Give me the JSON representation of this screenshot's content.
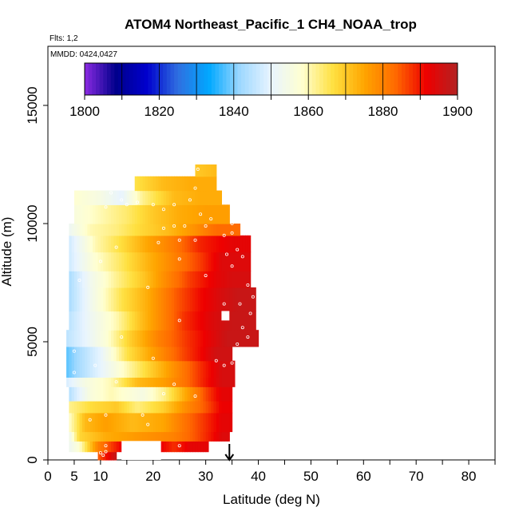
{
  "chart_data": {
    "type": "heatmap",
    "title": "ATOM4 Northeast_Pacific_1 CH4_NOAA_trop",
    "flights_label": "Flts: 1,2",
    "date_label": "MMDD: 0424,0427",
    "xlabel": "Latitude (deg N)",
    "ylabel": "Altitude (m)",
    "xlim": [
      0,
      85
    ],
    "ylim": [
      0,
      17500
    ],
    "xticks": [
      "0",
      "5",
      "10",
      "20",
      "30",
      "40",
      "50",
      "60",
      "70",
      "80"
    ],
    "yticks": [
      "0",
      "5000",
      "10000",
      "15000"
    ],
    "colorbar": {
      "min": 1800,
      "max": 1900,
      "tick_labels": [
        "1800",
        "1820",
        "1840",
        "1860",
        "1880",
        "1900"
      ],
      "colors": [
        "#8B2BE2",
        "#00008B",
        "#0000CD",
        "#2F6FE0",
        "#00A8FF",
        "#9ED8FF",
        "#E8F4FF",
        "#FFFFD0",
        "#FFE040",
        "#FFA500",
        "#FF6A00",
        "#EE0000",
        "#B22222"
      ],
      "position": "top"
    },
    "marker_latitude": 34.5,
    "profiles": [
      {
        "y0": 0,
        "y1": 350,
        "segments": [
          [
            9.5,
            1884
          ],
          [
            12,
            1894
          ],
          [
            13,
            1898
          ]
        ]
      },
      {
        "y0": 350,
        "y1": 800,
        "segments": [
          [
            4,
            1852
          ],
          [
            6,
            1858
          ],
          [
            9.5,
            1880
          ],
          [
            14,
            1892
          ],
          [
            21.5,
            1892
          ],
          [
            24,
            1888
          ],
          [
            27,
            1893
          ],
          [
            30.5,
            1893
          ]
        ]
      },
      {
        "y0": 800,
        "y1": 1200,
        "segments": [
          [
            4,
            1852
          ],
          [
            6,
            1868
          ],
          [
            11,
            1874
          ],
          [
            24,
            1880
          ],
          [
            28,
            1885
          ],
          [
            31,
            1890
          ],
          [
            33,
            1894
          ],
          [
            34.5,
            1894
          ]
        ]
      },
      {
        "y0": 1200,
        "y1": 2000,
        "segments": [
          [
            4,
            1858
          ],
          [
            7,
            1872
          ],
          [
            11,
            1876
          ],
          [
            16,
            1872
          ],
          [
            22,
            1875
          ],
          [
            26,
            1882
          ],
          [
            30,
            1888
          ],
          [
            33,
            1893
          ],
          [
            35,
            1893
          ]
        ]
      },
      {
        "y0": 2000,
        "y1": 2500,
        "segments": [
          [
            4,
            1862
          ],
          [
            8,
            1867
          ],
          [
            13,
            1870
          ],
          [
            17,
            1863
          ],
          [
            22,
            1869
          ],
          [
            26,
            1878
          ],
          [
            30,
            1885
          ],
          [
            33,
            1892
          ],
          [
            35,
            1892
          ]
        ]
      },
      {
        "y0": 2500,
        "y1": 3100,
        "segments": [
          [
            4,
            1844
          ],
          [
            8,
            1856
          ],
          [
            12,
            1860
          ],
          [
            18,
            1855
          ],
          [
            22,
            1862
          ],
          [
            26,
            1874
          ],
          [
            30,
            1886
          ],
          [
            33,
            1893
          ],
          [
            35,
            1893
          ]
        ]
      },
      {
        "y0": 3100,
        "y1": 3500,
        "segments": [
          [
            3.5,
            1848
          ],
          [
            7,
            1855
          ],
          [
            12,
            1860
          ],
          [
            17,
            1872
          ],
          [
            22,
            1876
          ],
          [
            26,
            1882
          ],
          [
            30,
            1890
          ],
          [
            33,
            1895
          ],
          [
            35.5,
            1895
          ]
        ]
      },
      {
        "y0": 3500,
        "y1": 4200,
        "segments": [
          [
            3.5,
            1838
          ],
          [
            6,
            1843
          ],
          [
            10,
            1850
          ],
          [
            15,
            1860
          ],
          [
            20,
            1870
          ],
          [
            25,
            1880
          ],
          [
            29,
            1888
          ],
          [
            33,
            1895
          ],
          [
            35.5,
            1895
          ]
        ]
      },
      {
        "y0": 4200,
        "y1": 4800,
        "segments": [
          [
            3.5,
            1838
          ],
          [
            6,
            1843
          ],
          [
            10,
            1850
          ],
          [
            15,
            1866
          ],
          [
            20,
            1876
          ],
          [
            25,
            1885
          ],
          [
            29,
            1891
          ],
          [
            32,
            1896
          ],
          [
            35,
            1896
          ]
        ]
      },
      {
        "y0": 4800,
        "y1": 5500,
        "segments": [
          [
            3.5,
            1845
          ],
          [
            7,
            1850
          ],
          [
            11,
            1857
          ],
          [
            16,
            1870
          ],
          [
            21,
            1880
          ],
          [
            26,
            1887
          ],
          [
            30,
            1892
          ],
          [
            34,
            1897
          ],
          [
            40,
            1897
          ]
        ]
      },
      {
        "y0": 5500,
        "y1": 6300,
        "segments": [
          [
            4,
            1845
          ],
          [
            8,
            1852
          ],
          [
            13,
            1860
          ],
          [
            18,
            1872
          ],
          [
            22,
            1880
          ],
          [
            26,
            1888
          ],
          [
            31,
            1894
          ],
          [
            35,
            1897
          ],
          [
            39.5,
            1897
          ]
        ]
      },
      {
        "y0": 6300,
        "y1": 7300,
        "segments": [
          [
            4,
            1843
          ],
          [
            9,
            1855
          ],
          [
            14,
            1866
          ],
          [
            19,
            1874
          ],
          [
            24,
            1884
          ],
          [
            29,
            1891
          ],
          [
            33,
            1895
          ],
          [
            36,
            1897
          ],
          [
            39.5,
            1897
          ]
        ]
      },
      {
        "y0": 7300,
        "y1": 8000,
        "segments": [
          [
            4,
            1843
          ],
          [
            8,
            1853
          ],
          [
            13,
            1862
          ],
          [
            18,
            1870
          ],
          [
            22,
            1878
          ],
          [
            27,
            1887
          ],
          [
            32,
            1893
          ],
          [
            35,
            1895
          ],
          [
            38.5,
            1895
          ]
        ]
      },
      {
        "y0": 8000,
        "y1": 8800,
        "segments": [
          [
            4,
            1847
          ],
          [
            9,
            1858
          ],
          [
            14,
            1865
          ],
          [
            19,
            1873
          ],
          [
            24,
            1880
          ],
          [
            29,
            1887
          ],
          [
            33,
            1894
          ],
          [
            38.5,
            1894
          ]
        ]
      },
      {
        "y0": 8800,
        "y1": 9500,
        "segments": [
          [
            4,
            1847
          ],
          [
            9,
            1860
          ],
          [
            14,
            1867
          ],
          [
            19,
            1875
          ],
          [
            24,
            1881
          ],
          [
            29,
            1889
          ],
          [
            35,
            1893
          ],
          [
            38.5,
            1893
          ]
        ]
      },
      {
        "y0": 9500,
        "y1": 10000,
        "segments": [
          [
            4,
            1852
          ],
          [
            8,
            1860
          ],
          [
            13,
            1863
          ],
          [
            18,
            1868
          ],
          [
            23,
            1872
          ],
          [
            28,
            1878
          ],
          [
            32,
            1883
          ],
          [
            36.5,
            1883
          ]
        ]
      },
      {
        "y0": 10000,
        "y1": 10800,
        "segments": [
          [
            5,
            1856
          ],
          [
            10,
            1860
          ],
          [
            15,
            1864
          ],
          [
            20,
            1870
          ],
          [
            25,
            1874
          ],
          [
            30,
            1876
          ],
          [
            34.5,
            1876
          ]
        ]
      },
      {
        "y0": 10800,
        "y1": 11400,
        "segments": [
          [
            5,
            1858
          ],
          [
            10,
            1855
          ],
          [
            14,
            1850
          ],
          [
            18,
            1862
          ],
          [
            24,
            1872
          ],
          [
            29,
            1874
          ],
          [
            33,
            1874
          ]
        ]
      },
      {
        "y0": 11400,
        "y1": 12000,
        "segments": [
          [
            16.5,
            1866
          ],
          [
            22,
            1872
          ],
          [
            27,
            1874
          ],
          [
            32,
            1874
          ]
        ]
      },
      {
        "y0": 12000,
        "y1": 12500,
        "segments": [
          [
            28,
            1870
          ],
          [
            32,
            1872
          ]
        ]
      }
    ],
    "gaps": [
      {
        "x0": 14,
        "x1": 21.5,
        "y0": 0,
        "y1": 800
      },
      {
        "x0": 33,
        "x1": 34.5,
        "y0": 5900,
        "y1": 6300
      }
    ],
    "samples": [
      [
        10.5,
        200
      ],
      [
        11,
        350
      ],
      [
        10,
        300
      ],
      [
        11,
        600
      ],
      [
        25,
        600
      ],
      [
        19,
        1500
      ],
      [
        8,
        1700
      ],
      [
        11,
        1900
      ],
      [
        18,
        1900
      ],
      [
        22,
        2800
      ],
      [
        28,
        2700
      ],
      [
        5,
        3700
      ],
      [
        13,
        3300
      ],
      [
        24,
        3200
      ],
      [
        9,
        4000
      ],
      [
        20,
        4300
      ],
      [
        33.5,
        4000
      ],
      [
        5,
        4600
      ],
      [
        14,
        5200
      ],
      [
        32,
        4200
      ],
      [
        35,
        4100
      ],
      [
        37.5,
        4500
      ],
      [
        36,
        4900
      ],
      [
        38,
        5200
      ],
      [
        25,
        5900
      ],
      [
        37,
        5600
      ],
      [
        38.5,
        6200
      ],
      [
        36.5,
        6600
      ],
      [
        33.5,
        6600
      ],
      [
        39,
        6900
      ],
      [
        6,
        7600
      ],
      [
        19,
        7300
      ],
      [
        30,
        7800
      ],
      [
        38,
        7400
      ],
      [
        35,
        8200
      ],
      [
        10,
        8400
      ],
      [
        25,
        8500
      ],
      [
        34,
        8700
      ],
      [
        36,
        8900
      ],
      [
        37,
        8600
      ],
      [
        13,
        9000
      ],
      [
        21,
        9200
      ],
      [
        25,
        9300
      ],
      [
        28,
        9300
      ],
      [
        33.5,
        9500
      ],
      [
        35,
        9600
      ],
      [
        22,
        9800
      ],
      [
        24,
        9900
      ],
      [
        26,
        9900
      ],
      [
        30,
        9900
      ],
      [
        35,
        10000
      ],
      [
        31,
        10200
      ],
      [
        29,
        10400
      ],
      [
        22,
        10600
      ],
      [
        24,
        10800
      ],
      [
        11,
        10700
      ],
      [
        15,
        10800
      ],
      [
        17,
        10900
      ],
      [
        20,
        10800
      ],
      [
        27,
        11000
      ],
      [
        12,
        11300
      ],
      [
        14,
        11000
      ],
      [
        28,
        11500
      ],
      [
        33,
        12000
      ],
      [
        28.5,
        12300
      ]
    ]
  }
}
